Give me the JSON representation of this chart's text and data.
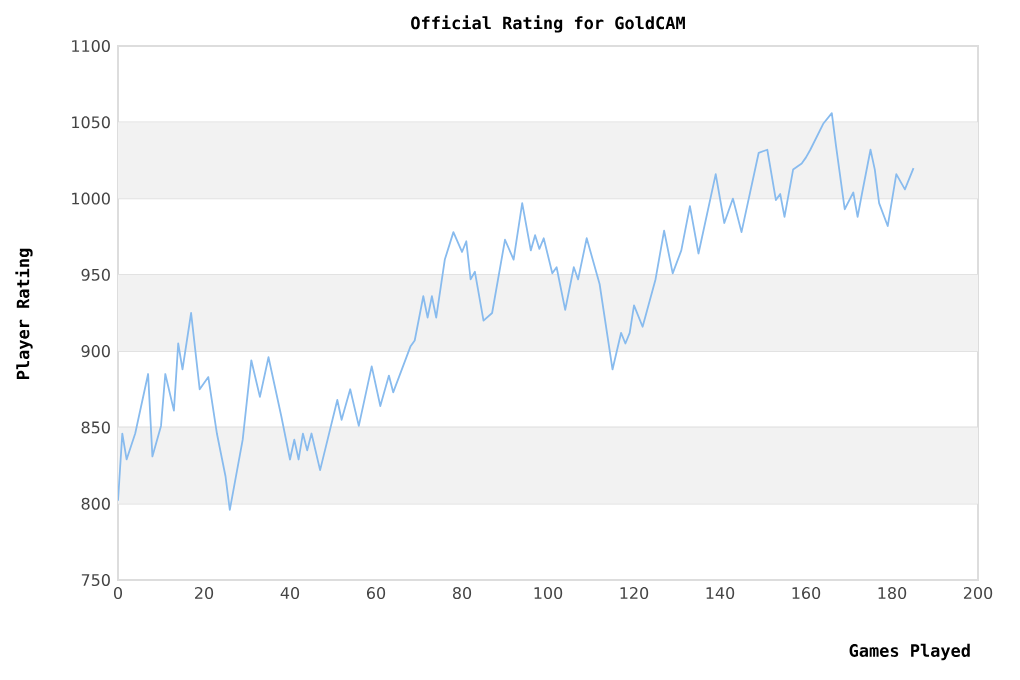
{
  "chart_data": {
    "type": "line",
    "title": "Official Rating for GoldCAM",
    "xlabel": "Games Played",
    "ylabel": "Player Rating",
    "series": [
      {
        "color": "#88bbee",
        "x": [
          0,
          1,
          2,
          4,
          7,
          8,
          10,
          11,
          13,
          14,
          15,
          17,
          19,
          21,
          23,
          25,
          26,
          29,
          31,
          33,
          35,
          38,
          40,
          41,
          42,
          43,
          44,
          45,
          47,
          51,
          52,
          54,
          56,
          59,
          61,
          63,
          64,
          68,
          69,
          71,
          72,
          73,
          74,
          76,
          78,
          80,
          81,
          82,
          83,
          85,
          87,
          90,
          92,
          94,
          96,
          97,
          98,
          99,
          101,
          102,
          104,
          106,
          107,
          109,
          112,
          115,
          117,
          118,
          119,
          120,
          122,
          125,
          127,
          129,
          131,
          133,
          135,
          139,
          141,
          143,
          145,
          149,
          151,
          153,
          154,
          155,
          157,
          159,
          160,
          161,
          164,
          166,
          167,
          169,
          171,
          172,
          173,
          175,
          176,
          177,
          179,
          181,
          183,
          185
        ],
        "values": [
          802,
          846,
          829,
          846,
          885,
          831,
          851,
          885,
          861,
          905,
          888,
          925,
          875,
          883,
          846,
          818,
          796,
          842,
          894,
          870,
          896,
          857,
          829,
          842,
          829,
          846,
          835,
          846,
          822,
          868,
          855,
          875,
          851,
          890,
          864,
          884,
          873,
          903,
          907,
          936,
          922,
          936,
          922,
          960,
          978,
          965,
          972,
          947,
          952,
          920,
          925,
          973,
          960,
          997,
          966,
          976,
          967,
          974,
          951,
          955,
          927,
          955,
          947,
          974,
          944,
          888,
          912,
          905,
          912,
          930,
          916,
          947,
          979,
          951,
          966,
          995,
          964,
          1016,
          984,
          1000,
          978,
          1030,
          1032,
          999,
          1003,
          988,
          1019,
          1023,
          1027,
          1032,
          1049,
          1056,
          1034,
          993,
          1004,
          988,
          1003,
          1032,
          1019,
          997,
          982,
          1016,
          1006,
          1020
        ]
      }
    ],
    "xlim": [
      0,
      200
    ],
    "xticks": [
      0,
      20,
      40,
      60,
      80,
      100,
      120,
      140,
      160,
      180,
      200
    ],
    "ylim": [
      750,
      1100
    ],
    "yticks": [
      750,
      800,
      850,
      900,
      950,
      1000,
      1050,
      1100
    ],
    "grid": "y",
    "marker": "none",
    "line_style": "solid",
    "bands": [
      {
        "axis": "y",
        "from": 800,
        "to": 850,
        "color": "#f2f2f2"
      },
      {
        "axis": "y",
        "from": 900,
        "to": 950,
        "color": "#f2f2f2"
      },
      {
        "axis": "y",
        "from": 1000,
        "to": 1050,
        "color": "#f2f2f2"
      }
    ]
  }
}
